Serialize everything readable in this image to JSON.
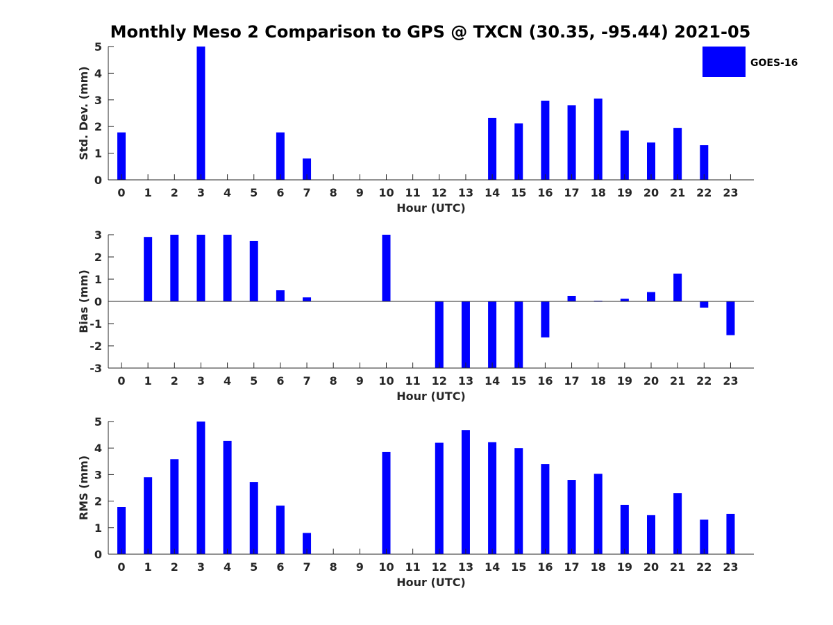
{
  "chart_data": {
    "title": "Monthly Meso 2 Comparison to GPS @ TXCN (30.35, -95.44) 2021-05",
    "legend": {
      "label": "GOES-16",
      "position": "top-right"
    },
    "series_color": "#0000ff",
    "type": "bar",
    "panels": [
      {
        "ylabel": "Std. Dev. (mm)",
        "xlabel": "Hour (UTC)",
        "ylim": [
          0,
          5
        ],
        "yticks": [
          0,
          1,
          2,
          3,
          4,
          5
        ],
        "categories": [
          "0",
          "1",
          "2",
          "3",
          "4",
          "5",
          "6",
          "7",
          "8",
          "9",
          "10",
          "11",
          "12",
          "13",
          "14",
          "15",
          "16",
          "17",
          "18",
          "19",
          "20",
          "21",
          "22",
          "23"
        ],
        "values": [
          1.78,
          null,
          null,
          5.0,
          null,
          null,
          1.78,
          0.8,
          null,
          null,
          null,
          null,
          null,
          null,
          2.32,
          2.12,
          2.97,
          2.8,
          3.05,
          1.85,
          1.4,
          1.95,
          1.3,
          null
        ]
      },
      {
        "ylabel": "Bias (mm)",
        "xlabel": "Hour (UTC)",
        "ylim": [
          -3,
          3
        ],
        "yticks": [
          -3,
          -2,
          -1,
          0,
          1,
          2,
          3
        ],
        "categories": [
          "0",
          "1",
          "2",
          "3",
          "4",
          "5",
          "6",
          "7",
          "8",
          "9",
          "10",
          "11",
          "12",
          "13",
          "14",
          "15",
          "16",
          "17",
          "18",
          "19",
          "20",
          "21",
          "22",
          "23"
        ],
        "values": [
          null,
          2.9,
          3.0,
          3.0,
          3.0,
          2.72,
          0.5,
          0.18,
          null,
          null,
          3.0,
          null,
          -3.0,
          -3.0,
          -3.0,
          -3.0,
          -1.62,
          0.25,
          0.03,
          0.12,
          0.42,
          1.25,
          -0.28,
          -1.52
        ]
      },
      {
        "ylabel": "RMS (mm)",
        "xlabel": "Hour (UTC)",
        "ylim": [
          0,
          5
        ],
        "yticks": [
          0,
          1,
          2,
          3,
          4,
          5
        ],
        "categories": [
          "0",
          "1",
          "2",
          "3",
          "4",
          "5",
          "6",
          "7",
          "8",
          "9",
          "10",
          "11",
          "12",
          "13",
          "14",
          "15",
          "16",
          "17",
          "18",
          "19",
          "20",
          "21",
          "22",
          "23"
        ],
        "values": [
          1.78,
          2.9,
          3.58,
          5.0,
          4.27,
          2.72,
          1.83,
          0.8,
          null,
          null,
          3.85,
          null,
          4.2,
          4.68,
          4.22,
          4.0,
          3.4,
          2.8,
          3.03,
          1.86,
          1.47,
          2.3,
          1.3,
          1.52
        ]
      }
    ]
  }
}
